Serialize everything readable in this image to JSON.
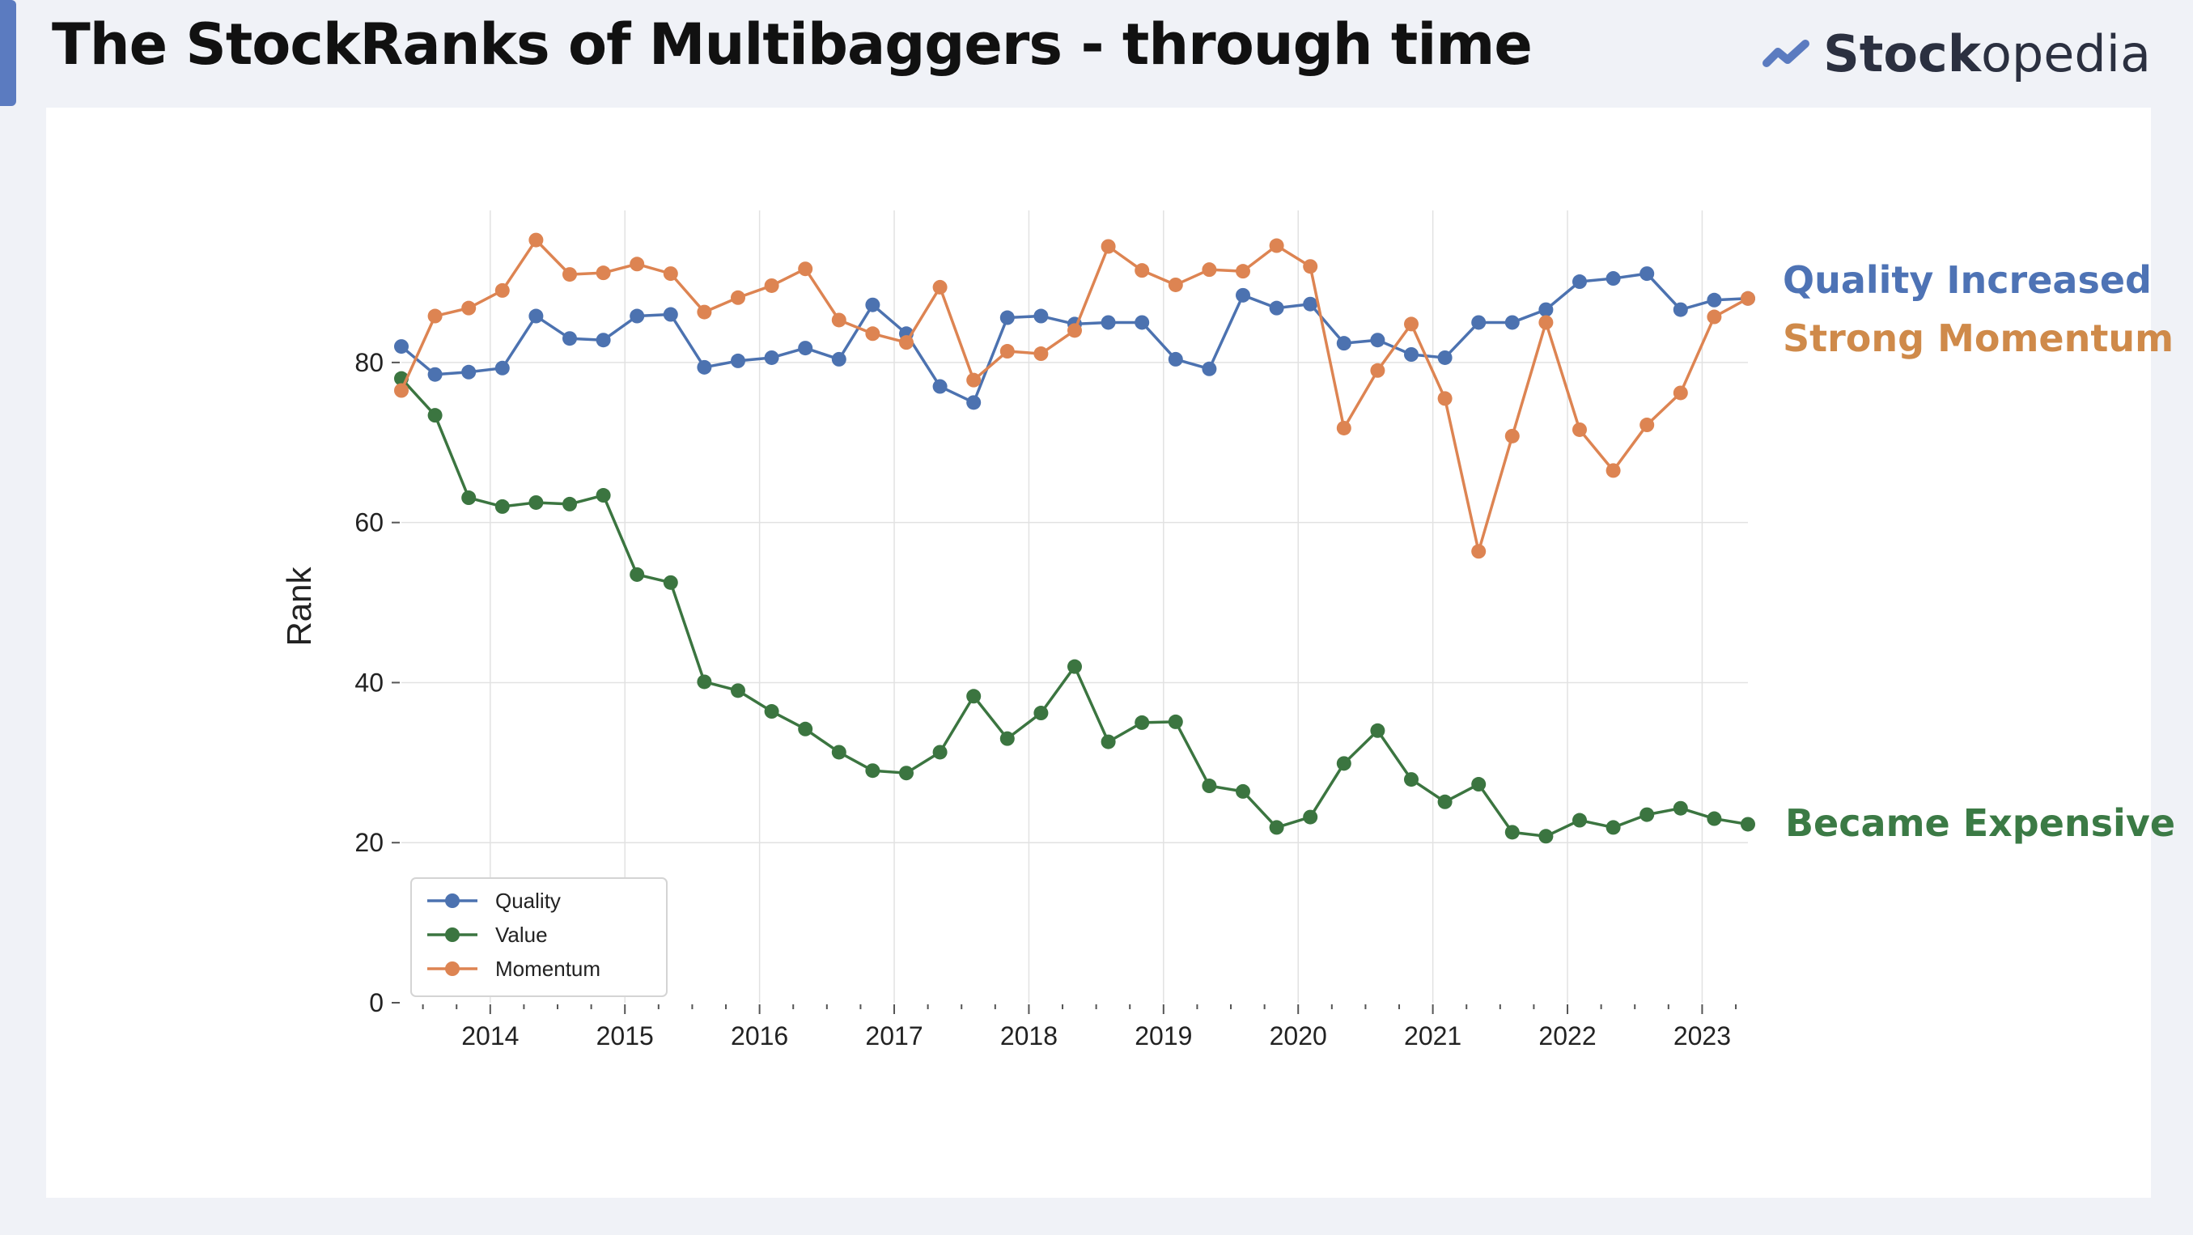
{
  "header": {
    "title": "The StockRanks of Multibaggers - through time",
    "logo": {
      "text_bold": "Stock",
      "text_regular": "opedia",
      "icon": "trend-up-icon",
      "color": "#2b3040",
      "icon_color": "#5b7bc0"
    }
  },
  "annotations": [
    {
      "id": "quality",
      "text": "Quality Increased",
      "color": "#4e73b5"
    },
    {
      "id": "momentum",
      "text": "Strong Momentum",
      "color": "#cf8a4a"
    },
    {
      "id": "value",
      "text": "Became Expensive",
      "color": "#3b7a45"
    }
  ],
  "chart_data": {
    "type": "line",
    "title": "",
    "xlabel": "",
    "ylabel": "Rank",
    "ylim": [
      0,
      99
    ],
    "yticks": [
      0,
      20,
      40,
      60,
      80
    ],
    "xlim": [
      2013.34,
      2023.34
    ],
    "xticks": [
      "2014",
      "2015",
      "2016",
      "2017",
      "2018",
      "2019",
      "2020",
      "2021",
      "2022",
      "2023"
    ],
    "grid": true,
    "legend_position": "lower-left",
    "x": [
      2013.34,
      2013.59,
      2013.84,
      2014.09,
      2014.34,
      2014.59,
      2014.84,
      2015.09,
      2015.34,
      2015.59,
      2015.84,
      2016.09,
      2016.34,
      2016.59,
      2016.84,
      2017.09,
      2017.34,
      2017.59,
      2017.84,
      2018.09,
      2018.34,
      2018.59,
      2018.84,
      2019.09,
      2019.34,
      2019.59,
      2019.84,
      2020.09,
      2020.34,
      2020.59,
      2020.84,
      2021.09,
      2021.34,
      2021.59,
      2021.84,
      2022.09,
      2022.34,
      2022.59,
      2022.84,
      2023.09,
      2023.34
    ],
    "series": [
      {
        "name": "Quality",
        "color": "#4c72b0",
        "values": [
          82,
          78.5,
          78.8,
          79.3,
          85.8,
          83,
          82.8,
          85.8,
          86,
          79.4,
          80.2,
          80.6,
          81.8,
          80.4,
          87.2,
          83.6,
          77,
          75,
          85.6,
          85.8,
          84.8,
          85,
          85,
          80.4,
          79.2,
          88.4,
          86.8,
          87.3,
          82.4,
          82.8,
          81,
          80.6,
          85,
          85,
          86.6,
          90.1,
          90.5,
          91.1,
          86.6,
          87.8,
          88
        ]
      },
      {
        "name": "Value",
        "color": "#3b7540",
        "values": [
          78,
          73.4,
          63.1,
          62,
          62.5,
          62.3,
          63.4,
          53.5,
          52.5,
          40.1,
          39,
          36.4,
          34.2,
          31.3,
          29,
          28.7,
          31.3,
          38.3,
          33,
          36.2,
          42,
          32.6,
          35,
          35.1,
          27.1,
          26.4,
          21.9,
          23.2,
          29.9,
          34,
          27.9,
          25.1,
          27.3,
          21.3,
          20.8,
          22.8,
          21.9,
          23.5,
          24.3,
          23,
          22.3
        ]
      },
      {
        "name": "Momentum",
        "color": "#dd8452",
        "values": [
          76.5,
          85.8,
          86.8,
          89,
          95.3,
          91,
          91.2,
          92.3,
          91.1,
          86.3,
          88.1,
          89.6,
          91.7,
          85.3,
          83.6,
          82.5,
          89.4,
          77.8,
          81.4,
          81.1,
          84,
          94.5,
          91.5,
          89.7,
          91.6,
          91.4,
          94.6,
          92,
          71.8,
          79,
          84.8,
          75.5,
          56.4,
          70.8,
          85,
          71.6,
          66.5,
          72.2,
          76.2,
          85.7,
          88
        ]
      }
    ]
  }
}
